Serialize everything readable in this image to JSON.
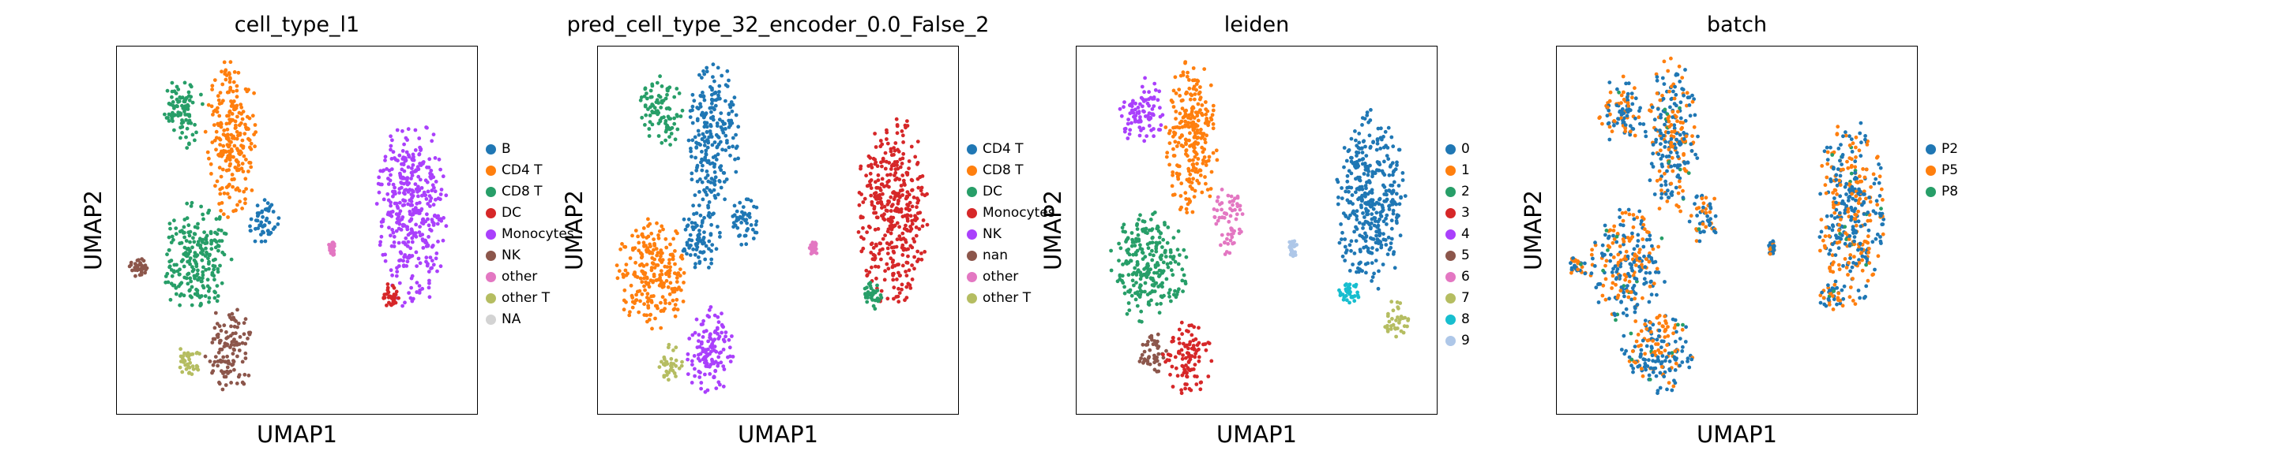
{
  "chart_data": [
    {
      "type": "scatter",
      "title": "cell_type_l1",
      "xlabel": "UMAP1",
      "ylabel": "UMAP2",
      "grid": false,
      "legend_position": "right",
      "legend": [
        {
          "label": "B",
          "color": "#1f77b4"
        },
        {
          "label": "CD4 T",
          "color": "#ff7f0e"
        },
        {
          "label": "CD8 T",
          "color": "#279e68"
        },
        {
          "label": "DC",
          "color": "#d62728"
        },
        {
          "label": "Monocytes",
          "color": "#aa40fc"
        },
        {
          "label": "NK",
          "color": "#8c564b"
        },
        {
          "label": "other",
          "color": "#e377c2"
        },
        {
          "label": "other T",
          "color": "#b5bd61"
        },
        {
          "label": "NA",
          "color": "#d3d3d3"
        }
      ],
      "clusters": [
        {
          "label": "CD8 T",
          "x": 0.18,
          "y": 0.82,
          "rx": 0.065,
          "ry": 0.1
        },
        {
          "label": "CD4 T",
          "x": 0.32,
          "y": 0.75,
          "rx": 0.075,
          "ry": 0.22
        },
        {
          "label": "B",
          "x": 0.41,
          "y": 0.53,
          "rx": 0.045,
          "ry": 0.08
        },
        {
          "label": "CD8 T",
          "x": 0.22,
          "y": 0.42,
          "rx": 0.1,
          "ry": 0.16
        },
        {
          "label": "NK",
          "x": 0.06,
          "y": 0.4,
          "rx": 0.025,
          "ry": 0.03
        },
        {
          "label": "NK",
          "x": 0.31,
          "y": 0.17,
          "rx": 0.07,
          "ry": 0.12
        },
        {
          "label": "other T",
          "x": 0.2,
          "y": 0.14,
          "rx": 0.035,
          "ry": 0.05
        },
        {
          "label": "Monocytes",
          "x": 0.82,
          "y": 0.55,
          "rx": 0.1,
          "ry": 0.27
        },
        {
          "label": "DC",
          "x": 0.76,
          "y": 0.32,
          "rx": 0.03,
          "ry": 0.04
        },
        {
          "label": "other",
          "x": 0.6,
          "y": 0.45,
          "rx": 0.012,
          "ry": 0.02
        }
      ]
    },
    {
      "type": "scatter",
      "title": "pred_cell_type_32_encoder_0.0_False_2",
      "xlabel": "UMAP1",
      "ylabel": "UMAP2",
      "grid": false,
      "legend_position": "right",
      "legend": [
        {
          "label": "CD4 T",
          "color": "#1f77b4"
        },
        {
          "label": "CD8 T",
          "color": "#ff7f0e"
        },
        {
          "label": "DC",
          "color": "#279e68"
        },
        {
          "label": "Monocytes",
          "color": "#d62728"
        },
        {
          "label": "NK",
          "color": "#aa40fc"
        },
        {
          "label": "nan",
          "color": "#8c564b"
        },
        {
          "label": "other",
          "color": "#e377c2"
        },
        {
          "label": "other T",
          "color": "#b5bd61"
        }
      ],
      "clusters": [
        {
          "label": "DC",
          "x": 0.18,
          "y": 0.82,
          "rx": 0.065,
          "ry": 0.1
        },
        {
          "label": "CD4 T",
          "x": 0.32,
          "y": 0.75,
          "rx": 0.075,
          "ry": 0.22
        },
        {
          "label": "CD4 T",
          "x": 0.41,
          "y": 0.53,
          "rx": 0.045,
          "ry": 0.08
        },
        {
          "label": "CD8 T",
          "x": 0.15,
          "y": 0.38,
          "rx": 0.1,
          "ry": 0.16
        },
        {
          "label": "CD4 T",
          "x": 0.28,
          "y": 0.48,
          "rx": 0.06,
          "ry": 0.1
        },
        {
          "label": "NK",
          "x": 0.31,
          "y": 0.17,
          "rx": 0.07,
          "ry": 0.12
        },
        {
          "label": "other T",
          "x": 0.2,
          "y": 0.14,
          "rx": 0.035,
          "ry": 0.05
        },
        {
          "label": "Monocytes",
          "x": 0.82,
          "y": 0.55,
          "rx": 0.1,
          "ry": 0.27
        },
        {
          "label": "DC",
          "x": 0.76,
          "y": 0.32,
          "rx": 0.03,
          "ry": 0.04
        },
        {
          "label": "other",
          "x": 0.6,
          "y": 0.45,
          "rx": 0.012,
          "ry": 0.02
        }
      ]
    },
    {
      "type": "scatter",
      "title": "leiden",
      "xlabel": "UMAP1",
      "ylabel": "UMAP2",
      "grid": false,
      "legend_position": "right",
      "legend": [
        {
          "label": "0",
          "color": "#1f77b4"
        },
        {
          "label": "1",
          "color": "#ff7f0e"
        },
        {
          "label": "2",
          "color": "#279e68"
        },
        {
          "label": "3",
          "color": "#d62728"
        },
        {
          "label": "4",
          "color": "#aa40fc"
        },
        {
          "label": "5",
          "color": "#8c564b"
        },
        {
          "label": "6",
          "color": "#e377c2"
        },
        {
          "label": "7",
          "color": "#b5bd61"
        },
        {
          "label": "8",
          "color": "#17becf"
        },
        {
          "label": "9",
          "color": "#aec7e8"
        }
      ],
      "clusters": [
        {
          "label": "4",
          "x": 0.18,
          "y": 0.82,
          "rx": 0.065,
          "ry": 0.1
        },
        {
          "label": "1",
          "x": 0.32,
          "y": 0.75,
          "rx": 0.075,
          "ry": 0.22
        },
        {
          "label": "6",
          "x": 0.42,
          "y": 0.53,
          "rx": 0.05,
          "ry": 0.1
        },
        {
          "label": "2",
          "x": 0.2,
          "y": 0.4,
          "rx": 0.11,
          "ry": 0.16
        },
        {
          "label": "5",
          "x": 0.21,
          "y": 0.17,
          "rx": 0.04,
          "ry": 0.07
        },
        {
          "label": "3",
          "x": 0.31,
          "y": 0.15,
          "rx": 0.07,
          "ry": 0.1
        },
        {
          "label": "0",
          "x": 0.82,
          "y": 0.58,
          "rx": 0.1,
          "ry": 0.25
        },
        {
          "label": "7",
          "x": 0.89,
          "y": 0.25,
          "rx": 0.035,
          "ry": 0.06
        },
        {
          "label": "8",
          "x": 0.76,
          "y": 0.33,
          "rx": 0.03,
          "ry": 0.04
        },
        {
          "label": "9",
          "x": 0.6,
          "y": 0.45,
          "rx": 0.015,
          "ry": 0.025
        }
      ]
    },
    {
      "type": "scatter",
      "title": "batch",
      "xlabel": "UMAP1",
      "ylabel": "UMAP2",
      "grid": false,
      "legend_position": "right",
      "legend": [
        {
          "label": "P2",
          "color": "#1f77b4"
        },
        {
          "label": "P5",
          "color": "#ff7f0e"
        },
        {
          "label": "P8",
          "color": "#279e68"
        }
      ],
      "clusters": [
        {
          "label": "mixed",
          "x": 0.18,
          "y": 0.82,
          "rx": 0.065,
          "ry": 0.1
        },
        {
          "label": "mixed",
          "x": 0.32,
          "y": 0.75,
          "rx": 0.075,
          "ry": 0.22
        },
        {
          "label": "mixed",
          "x": 0.41,
          "y": 0.53,
          "rx": 0.045,
          "ry": 0.08
        },
        {
          "label": "mixed",
          "x": 0.2,
          "y": 0.4,
          "rx": 0.11,
          "ry": 0.16
        },
        {
          "label": "mixed",
          "x": 0.06,
          "y": 0.4,
          "rx": 0.025,
          "ry": 0.03
        },
        {
          "label": "mixed",
          "x": 0.28,
          "y": 0.17,
          "rx": 0.1,
          "ry": 0.12
        },
        {
          "label": "mixed",
          "x": 0.82,
          "y": 0.55,
          "rx": 0.1,
          "ry": 0.27
        },
        {
          "label": "mixed",
          "x": 0.76,
          "y": 0.32,
          "rx": 0.03,
          "ry": 0.04
        },
        {
          "label": "mixed",
          "x": 0.6,
          "y": 0.45,
          "rx": 0.012,
          "ry": 0.02
        }
      ]
    }
  ]
}
